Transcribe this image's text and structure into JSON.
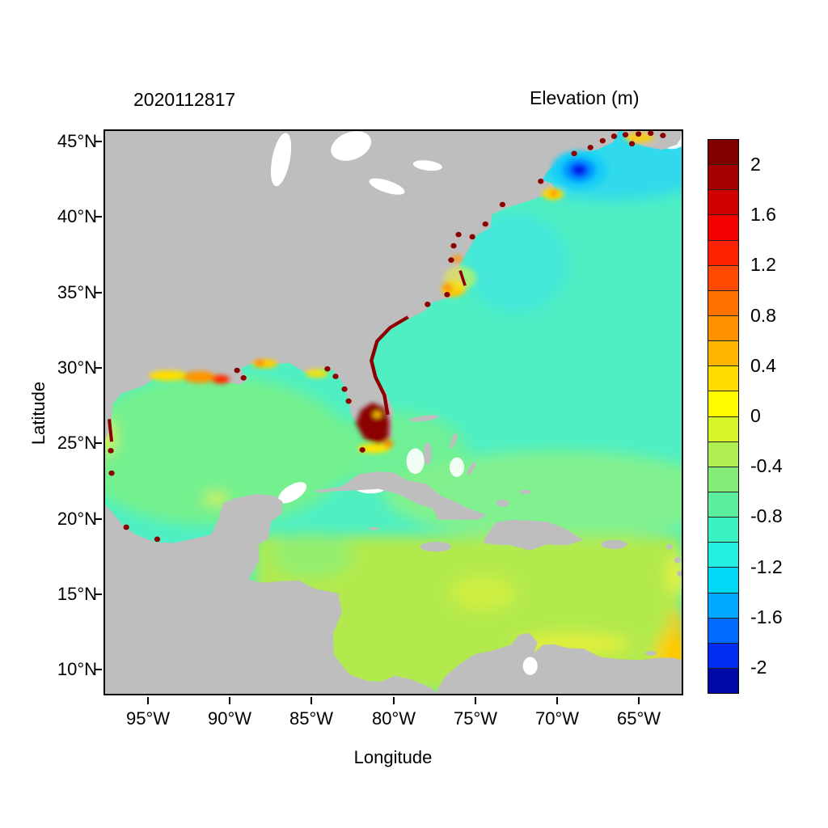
{
  "page": {
    "background": "#FFFFFF"
  },
  "header": {
    "left_title": "2020112817",
    "right_title": "Elevation (m)"
  },
  "axes": {
    "x_label": "Longitude",
    "y_label": "Latitude",
    "x_ticks": [
      "95°W",
      "90°W",
      "85°W",
      "80°W",
      "75°W",
      "70°W",
      "65°W"
    ],
    "y_ticks": [
      "45°N",
      "40°N",
      "35°N",
      "30°N",
      "25°N",
      "20°N",
      "15°N",
      "10°N"
    ]
  },
  "colorbar": {
    "tick_labels": [
      "2",
      "1.6",
      "1.2",
      "0.8",
      "0.4",
      "0",
      "-0.4",
      "-0.8",
      "-1.2",
      "-1.6",
      "-2"
    ],
    "value_range": [
      -2.2,
      2.2
    ],
    "step": 0.2,
    "colors_top_to_bottom": [
      "#800000",
      "#A80000",
      "#D10000",
      "#F50000",
      "#FF2200",
      "#FF4A00",
      "#FF7100",
      "#FF9100",
      "#FFB600",
      "#FFDC00",
      "#FFFC00",
      "#D8F52B",
      "#AFEF52",
      "#86EC78",
      "#5CEF9E",
      "#3BF2C3",
      "#22EEE2",
      "#00D8F8",
      "#00A9FF",
      "#006BFF",
      "#002CF0",
      "#0008A8"
    ]
  },
  "chart_data": {
    "type": "heatmap",
    "title": "2020112817",
    "variable": "Elevation",
    "units": "m",
    "xlabel": "Longitude",
    "ylabel": "Latitude",
    "x_range_deg_west": [
      97.7,
      62.3
    ],
    "y_range_deg_north": [
      8.3,
      45.8
    ],
    "land_color": "#BEBEBE",
    "colorbar_range_m": [
      -2.2,
      2.2
    ],
    "regions": [
      {
        "area": "Gulf of Mexico interior",
        "approx_elevation_m": -0.1
      },
      {
        "area": "Western Atlantic offshore (25N-42N)",
        "approx_elevation_m": -0.35
      },
      {
        "area": "Gulf of Maine localized low (~68.6W, 43.2N)",
        "approx_elevation_m": -1.8
      },
      {
        "area": "South Florida coastal blob",
        "approx_elevation_m": 2.2
      },
      {
        "area": "Caribbean Sea south of 19N",
        "approx_elevation_m": 0.25
      },
      {
        "area": "Venezuelan coast band",
        "approx_elevation_m": 0.4
      },
      {
        "area": "Southeast corner at map edge (~62.5W, 9-13N)",
        "approx_elevation_m": 0.6
      },
      {
        "area": "Louisiana-Texas shelf strip",
        "approx_elevation_m": 0.9
      },
      {
        "area": "Pamlico Sound / NC coast",
        "approx_elevation_m": 0.7
      },
      {
        "area": "Cape Cod vicinity",
        "approx_elevation_m": 0.6
      },
      {
        "area": "Bay of Fundy coastal specks",
        "approx_elevation_m": 2.0
      },
      {
        "area": "US coastline specks (FL east coast, Chesapeake, Maine)",
        "approx_elevation_m": 2.2
      }
    ]
  }
}
